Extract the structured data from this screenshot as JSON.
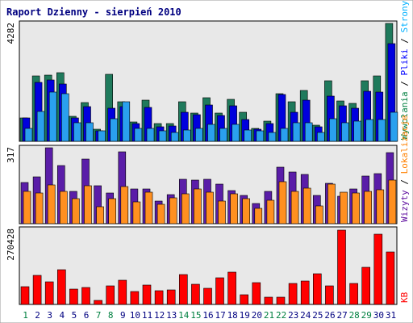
{
  "chart_data": {
    "type": "bar",
    "title": "Raport Dzienny -  sierpień 2010",
    "days": [
      "1",
      "2",
      "3",
      "4",
      "5",
      "6",
      "7",
      "8",
      "9",
      "10",
      "11",
      "12",
      "13",
      "14",
      "15",
      "16",
      "17",
      "18",
      "19",
      "20",
      "21",
      "22",
      "23",
      "24",
      "25",
      "26",
      "27",
      "28",
      "29",
      "30",
      "31"
    ],
    "weekend_days": [
      "1",
      "7",
      "8",
      "14",
      "15",
      "21",
      "22",
      "28",
      "29"
    ],
    "panels": [
      {
        "id": "top",
        "max_label": "4282",
        "ylim": [
          0,
          4282
        ],
        "axis_label_parts": [
          {
            "text": "Wywołania",
            "color": "#008040"
          },
          {
            "text": " / ",
            "color": "#000000"
          },
          {
            "text": "Pliki",
            "color": "#0000ff"
          },
          {
            "text": " / ",
            "color": "#000000"
          },
          {
            "text": "Strony",
            "color": "#00b0ff"
          }
        ],
        "series": [
          {
            "name": "Wywołania",
            "color": "#1f7a5c",
            "values": [
              855,
              2350,
              2400,
              2480,
              890,
              1400,
              430,
              2430,
              1420,
              690,
              1500,
              650,
              650,
              1420,
              1020,
              1580,
              1010,
              1520,
              1040,
              470,
              730,
              1720,
              1420,
              1840,
              570,
              2180,
              1450,
              1360,
              2180,
              2360,
              4262
            ]
          },
          {
            "name": "Pliki",
            "color": "#0000dd",
            "values": [
              855,
              2140,
              2220,
              2080,
              850,
              1240,
              380,
              1190,
              1240,
              650,
              1230,
              530,
              550,
              1050,
              970,
              1310,
              930,
              1280,
              780,
              440,
              650,
              1690,
              1060,
              1490,
              530,
              1640,
              1270,
              1190,
              1810,
              1770,
              3520
            ]
          },
          {
            "name": "Strony",
            "color": "#2aa0ee",
            "values": [
              480,
              1080,
              1770,
              1720,
              680,
              680,
              370,
              820,
              1430,
              480,
              480,
              380,
              320,
              400,
              460,
              610,
              460,
              610,
              400,
              380,
              330,
              460,
              660,
              660,
              330,
              830,
              660,
              730,
              790,
              800,
              1060
            ]
          }
        ]
      },
      {
        "id": "middle",
        "max_label": "317",
        "ylim": [
          0,
          317
        ],
        "axis_label_parts": [
          {
            "text": "Wizyty",
            "color": "#6010a0"
          },
          {
            "text": " / ",
            "color": "#000000"
          },
          {
            "text": "Lokalizacje",
            "color": "#ff8000"
          }
        ],
        "series": [
          {
            "name": "Wizyty",
            "color": "#5a1da8",
            "values": [
              170,
              194,
              313,
              240,
              134,
              266,
              156,
              127,
              298,
              145,
              142,
              94,
              119,
              182,
              180,
              183,
              165,
              136,
              116,
              85,
              133,
              234,
              214,
              205,
              118,
              166,
              114,
              145,
              198,
              208,
              292
            ]
          },
          {
            "name": "Lokalizacje",
            "color": "#ff9020",
            "values": [
              135,
              127,
              160,
              135,
              103,
              157,
              69,
              103,
              155,
              91,
              129,
              80,
              107,
              122,
              142,
              130,
              94,
              125,
              105,
              63,
              96,
              173,
              133,
              146,
              75,
              163,
              130,
              128,
              133,
              140,
              180
            ]
          }
        ]
      },
      {
        "id": "bottom",
        "max_label": "270428",
        "ylim": [
          0,
          270428
        ],
        "axis_label_parts": [
          {
            "text": "KB",
            "color": "#ff0000"
          }
        ],
        "series": [
          {
            "name": "KB",
            "color": "#ff0000",
            "values": [
              62000,
              103000,
              80000,
              123000,
              55000,
              60000,
              14000,
              65000,
              86000,
              45000,
              68000,
              50000,
              53000,
              106000,
              72000,
              57000,
              96000,
              115000,
              34000,
              78000,
              26000,
              27000,
              76000,
              84000,
              108000,
              66000,
              266000,
              75000,
              131000,
              250000,
              188000
            ]
          }
        ]
      }
    ]
  }
}
